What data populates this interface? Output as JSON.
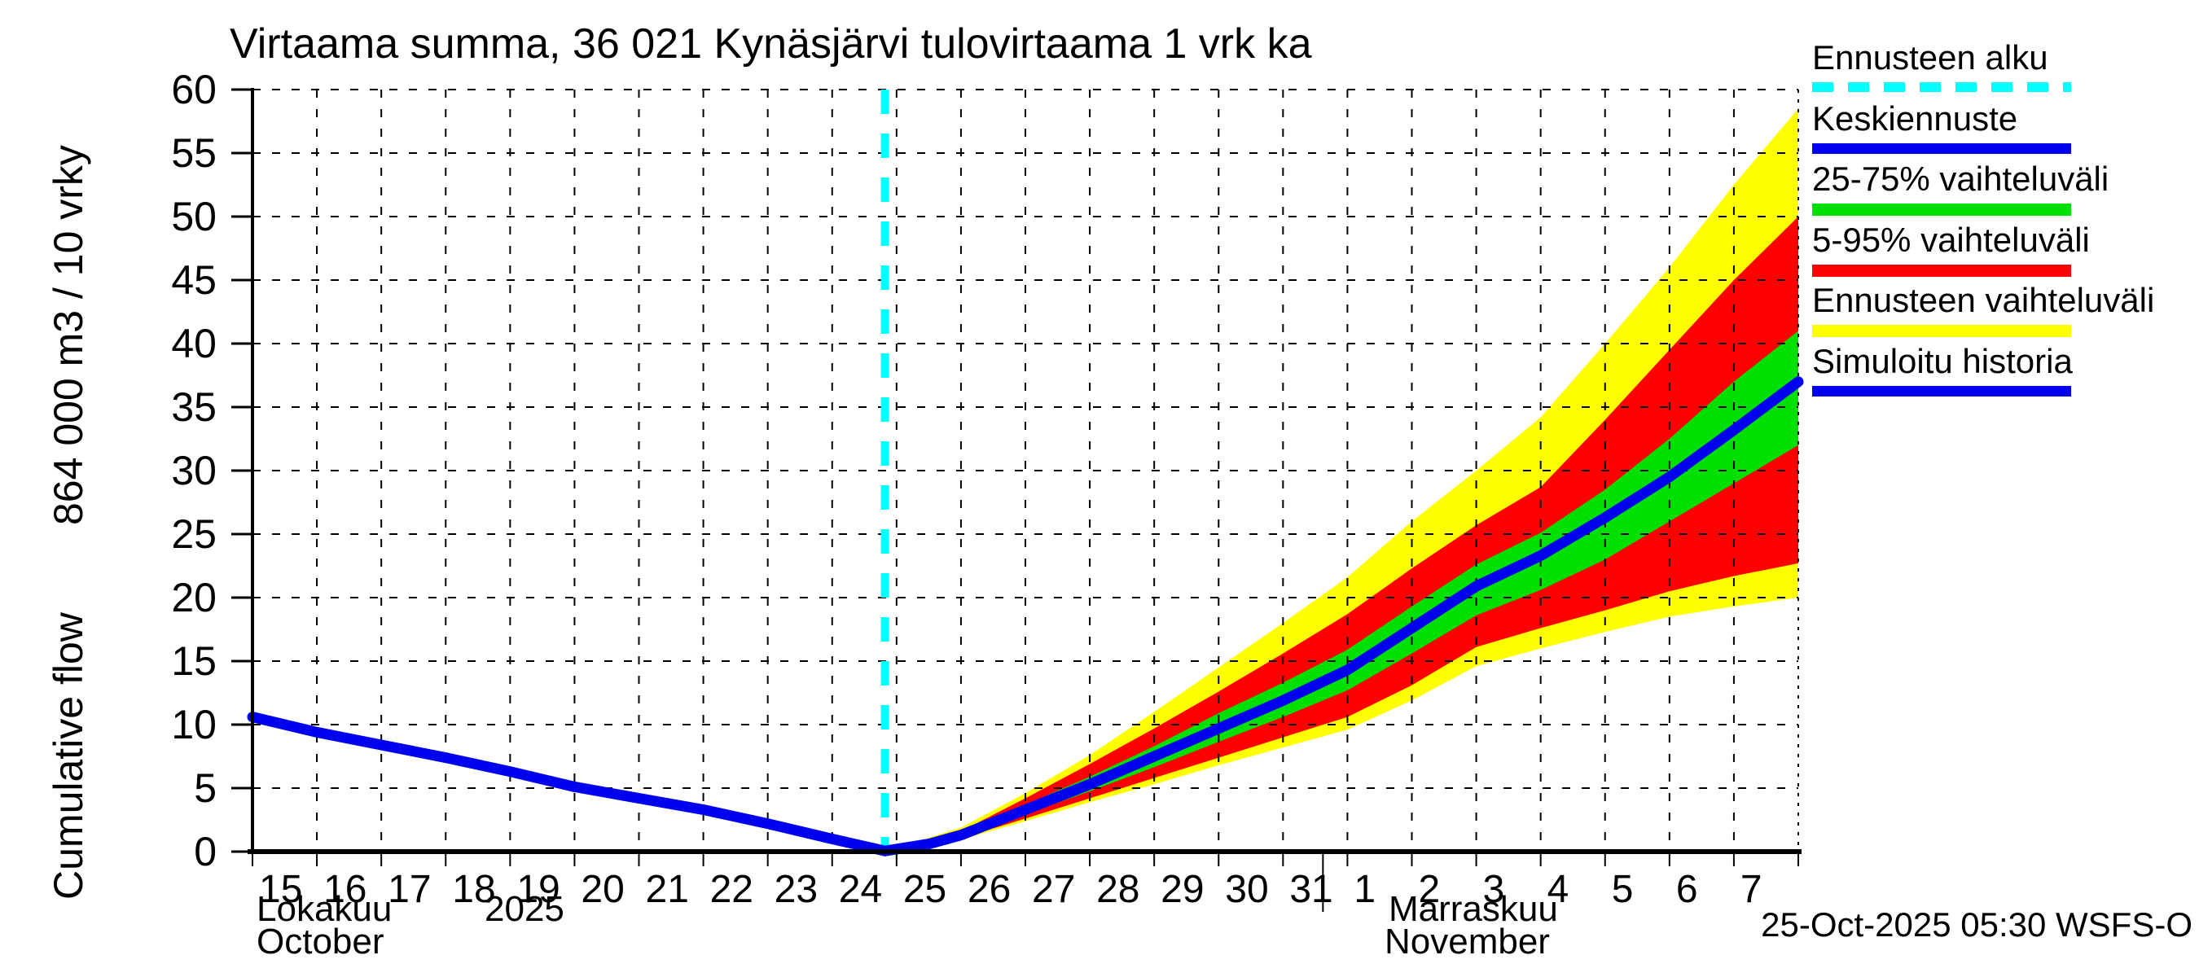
{
  "title": "Virtaama summa, 36 021 Kynäsjärvi tulovirtaama 1 vrk ka",
  "y_axis": {
    "name": "Cumulative flow",
    "units": "864 000 m3 / 10 vrky"
  },
  "x_axis": {
    "month_fi_left": "Lokakuu",
    "year_left": "2025",
    "month_en_left": "October",
    "month_fi_right": "Marraskuu",
    "month_en_right": "November"
  },
  "footer": {
    "timestamp": "25-Oct-2025 05:30 WSFS-O"
  },
  "legend": [
    {
      "label": "Ennusteen alku",
      "color": "#00ffff",
      "style": "dashed-line"
    },
    {
      "label": "Keskiennuste",
      "color": "#0000f0",
      "style": "line"
    },
    {
      "label": "25-75% vaihteluväli",
      "color": "#00e000",
      "style": "band"
    },
    {
      "label": "5-95% vaihteluväli",
      "color": "#ff0000",
      "style": "band"
    },
    {
      "label": "Ennusteen vaihteluväli",
      "color": "#ffff00",
      "style": "band"
    },
    {
      "label": "Simuloitu historia",
      "color": "#0000f0",
      "style": "line"
    }
  ],
  "chart_data": {
    "type": "line",
    "subtype": "forecast-fan-chart",
    "title": "Virtaama summa, 36 021 Kynäsjärvi tulovirtaama 1 vrk ka",
    "ylabel": "Cumulative flow  864 000 m3 / 10 vrky",
    "xlabel": "Lokakuu 2025 / October — Marraskuu / November",
    "ylim": [
      0,
      60
    ],
    "y_ticks": [
      0,
      5,
      10,
      15,
      20,
      25,
      30,
      35,
      40,
      45,
      50,
      55,
      60
    ],
    "x_domain_days": 24,
    "x_tick_labels": [
      "15",
      "16",
      "17",
      "18",
      "19",
      "20",
      "21",
      "22",
      "23",
      "24",
      "25",
      "26",
      "27",
      "28",
      "29",
      "30",
      "31",
      "1",
      "2",
      "3",
      "4",
      "5",
      "6",
      "7"
    ],
    "month_separator_day": 16.62,
    "forecast_start_day": 9.82,
    "grid": true,
    "legend_position": "outside-top-right",
    "colors": {
      "history_line": "#0000f0",
      "median_line": "#0000f0",
      "band_25_75": "#00e000",
      "band_5_95": "#ff0000",
      "band_minmax": "#ffff00",
      "forecast_start_line": "#00ffff",
      "grid_line": "#000000"
    },
    "series": {
      "history": {
        "name": "Simuloitu historia",
        "points": [
          [
            0,
            10.6
          ],
          [
            1,
            9.4
          ],
          [
            2,
            8.4
          ],
          [
            3,
            7.4
          ],
          [
            4,
            6.3
          ],
          [
            5,
            5.1
          ],
          [
            6,
            4.2
          ],
          [
            7,
            3.3
          ],
          [
            8,
            2.2
          ],
          [
            9,
            1.0
          ],
          [
            9.82,
            0.05
          ]
        ]
      },
      "median": {
        "name": "Keskiennuste",
        "points": [
          [
            9.82,
            0.05
          ],
          [
            10,
            0.2
          ],
          [
            10.5,
            0.6
          ],
          [
            11,
            1.3
          ],
          [
            12,
            3.3
          ],
          [
            13,
            5.3
          ],
          [
            14,
            7.5
          ],
          [
            15,
            9.7
          ],
          [
            16,
            11.9
          ],
          [
            17,
            14.3
          ],
          [
            18,
            17.6
          ],
          [
            19,
            20.9
          ],
          [
            20,
            23.3
          ],
          [
            21,
            26.3
          ],
          [
            22,
            29.5
          ],
          [
            23,
            33.2
          ],
          [
            24,
            37.0
          ]
        ]
      },
      "band_minmax": {
        "name": "Ennusteen vaihteluväli",
        "top": [
          [
            9.82,
            0.05
          ],
          [
            10,
            0.3
          ],
          [
            11,
            1.9
          ],
          [
            12,
            4.6
          ],
          [
            13,
            7.6
          ],
          [
            14,
            11.0
          ],
          [
            15,
            14.5
          ],
          [
            16,
            18.0
          ],
          [
            17,
            21.6
          ],
          [
            18,
            26.0
          ],
          [
            19,
            30.0
          ],
          [
            20,
            34.2
          ],
          [
            21,
            40.0
          ],
          [
            22,
            46.0
          ],
          [
            23,
            52.5
          ],
          [
            24,
            58.5
          ]
        ],
        "bottom": [
          [
            9.82,
            0.05
          ],
          [
            10,
            0.15
          ],
          [
            11,
            0.95
          ],
          [
            12,
            2.4
          ],
          [
            13,
            3.9
          ],
          [
            14,
            5.3
          ],
          [
            15,
            6.8
          ],
          [
            16,
            8.2
          ],
          [
            17,
            9.6
          ],
          [
            18,
            11.9
          ],
          [
            19,
            14.6
          ],
          [
            20,
            16.0
          ],
          [
            21,
            17.3
          ],
          [
            22,
            18.5
          ],
          [
            23,
            19.3
          ],
          [
            24,
            20.0
          ]
        ]
      },
      "band_5_95": {
        "name": "5-95% vaihteluväli",
        "top": [
          [
            9.82,
            0.05
          ],
          [
            10,
            0.27
          ],
          [
            11,
            1.6
          ],
          [
            12,
            4.2
          ],
          [
            13,
            6.9
          ],
          [
            14,
            9.7
          ],
          [
            15,
            12.6
          ],
          [
            16,
            15.6
          ],
          [
            17,
            18.7
          ],
          [
            18,
            22.3
          ],
          [
            19,
            25.7
          ],
          [
            20,
            28.7
          ],
          [
            21,
            34.0
          ],
          [
            22,
            39.5
          ],
          [
            23,
            45.0
          ],
          [
            24,
            50.0
          ]
        ],
        "bottom": [
          [
            9.82,
            0.05
          ],
          [
            10,
            0.17
          ],
          [
            11,
            1.05
          ],
          [
            12,
            2.6
          ],
          [
            13,
            4.2
          ],
          [
            14,
            5.8
          ],
          [
            15,
            7.4
          ],
          [
            16,
            9.0
          ],
          [
            17,
            10.6
          ],
          [
            18,
            13.1
          ],
          [
            19,
            16.1
          ],
          [
            20,
            17.6
          ],
          [
            21,
            19.0
          ],
          [
            22,
            20.5
          ],
          [
            23,
            21.7
          ],
          [
            24,
            22.7
          ]
        ]
      },
      "band_25_75": {
        "name": "25-75% vaihteluväli",
        "top": [
          [
            9.82,
            0.05
          ],
          [
            10,
            0.24
          ],
          [
            11,
            1.45
          ],
          [
            12,
            3.7
          ],
          [
            13,
            5.9
          ],
          [
            14,
            8.3
          ],
          [
            15,
            10.9
          ],
          [
            16,
            13.3
          ],
          [
            17,
            15.9
          ],
          [
            18,
            19.3
          ],
          [
            19,
            22.6
          ],
          [
            20,
            25.1
          ],
          [
            21,
            28.5
          ],
          [
            22,
            32.5
          ],
          [
            23,
            37.0
          ],
          [
            24,
            41.0
          ]
        ],
        "bottom": [
          [
            9.82,
            0.05
          ],
          [
            10,
            0.2
          ],
          [
            11,
            1.15
          ],
          [
            12,
            2.95
          ],
          [
            13,
            4.75
          ],
          [
            14,
            6.65
          ],
          [
            15,
            8.65
          ],
          [
            16,
            10.6
          ],
          [
            17,
            12.7
          ],
          [
            18,
            15.6
          ],
          [
            19,
            18.6
          ],
          [
            20,
            20.6
          ],
          [
            21,
            23.0
          ],
          [
            22,
            26.0
          ],
          [
            23,
            29.0
          ],
          [
            24,
            32.0
          ]
        ]
      }
    }
  }
}
